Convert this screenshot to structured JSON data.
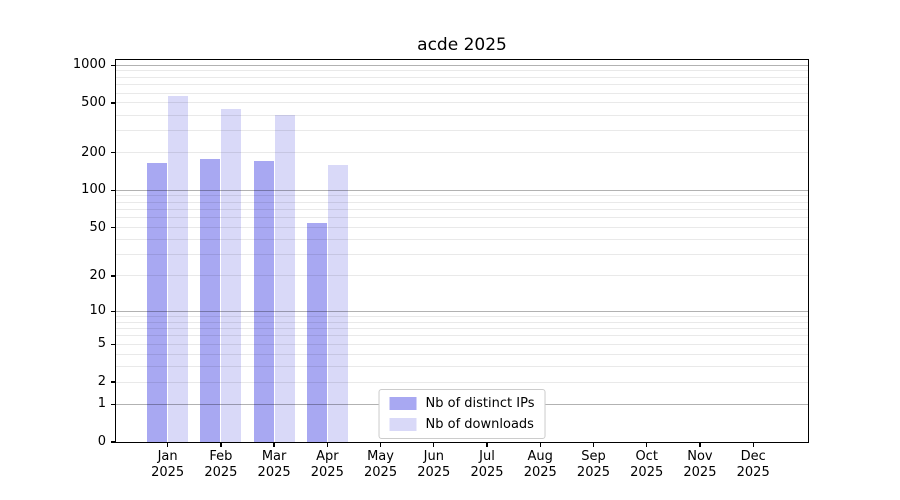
{
  "chart_data": {
    "type": "bar",
    "title": "acde 2025",
    "categories": [
      "Jan",
      "Feb",
      "Mar",
      "Apr",
      "May",
      "Jun",
      "Jul",
      "Aug",
      "Sep",
      "Oct",
      "Nov",
      "Dec"
    ],
    "x_year_label": "2025",
    "series": [
      {
        "name": "Nb of distinct IPs",
        "color": "#a8a8f2",
        "values": [
          165,
          178,
          172,
          54,
          null,
          null,
          null,
          null,
          null,
          null,
          null,
          null
        ]
      },
      {
        "name": "Nb of downloads",
        "color": "#d9d9f8",
        "values": [
          570,
          450,
          400,
          160,
          null,
          null,
          null,
          null,
          null,
          null,
          null,
          null
        ]
      }
    ],
    "y_ticks": [
      0,
      1,
      2,
      5,
      10,
      20,
      50,
      100,
      200,
      500,
      1000
    ],
    "y_scale": "log1p",
    "y_max": 1100,
    "ylim": [
      0,
      1100
    ],
    "grid": true,
    "legend_position": "lower center",
    "colors": {
      "major_grid": "#b0b0b0",
      "minor_grid": "#e8e8e8",
      "spine": "#000000",
      "text": "#000000",
      "legend_border": "#cccccc",
      "background": "#ffffff"
    }
  }
}
